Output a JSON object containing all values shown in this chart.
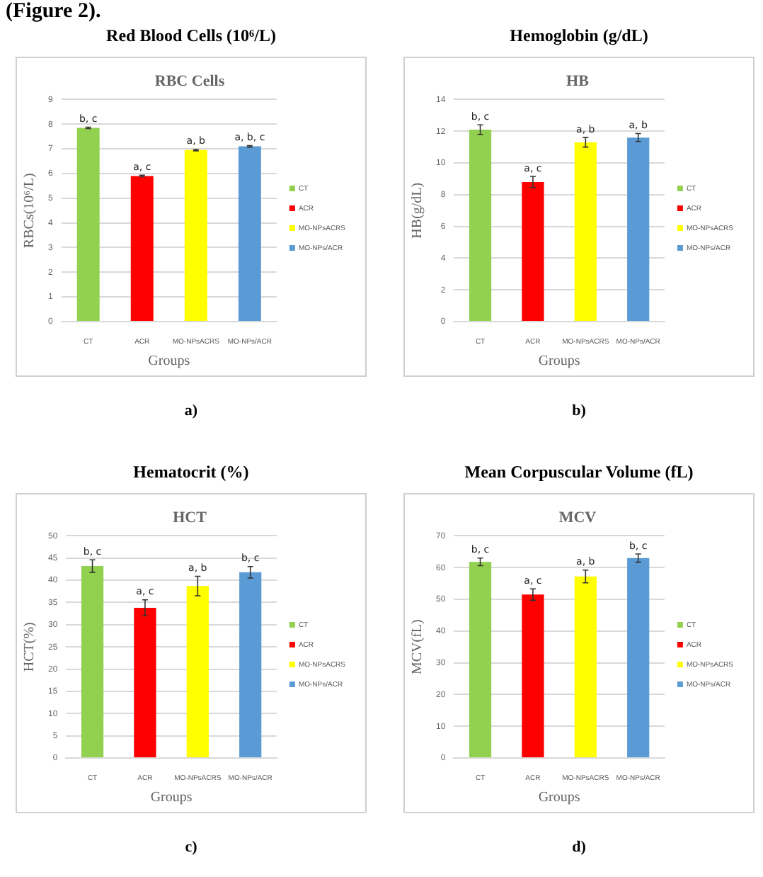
{
  "chart_data": [
    {
      "type": "bar",
      "title": "Red Blood Cells (10⁶/L)",
      "subtitle": "RBC Cells",
      "xlabel": "Groups",
      "ylabel": "RBCs(10⁶/L)",
      "annotations": [
        "(Figure 2).",
        "a)"
      ],
      "categories": [
        "CT",
        "ACR",
        "MO-NPsACRS",
        "MO-NPs/ACR"
      ],
      "series": [
        {
          "name": "CT",
          "color": "#92d050",
          "values": [
            7.85,
            null,
            null,
            null
          ],
          "errors": [
            0.03,
            null,
            null,
            null
          ],
          "value_labels": [
            "b, c",
            null,
            null,
            null
          ]
        },
        {
          "name": "ACR",
          "color": "#ff0000",
          "values": [
            null,
            5.9,
            null,
            null
          ],
          "errors": [
            null,
            0.03,
            null,
            null
          ],
          "value_labels": [
            null,
            "a, c",
            null,
            null
          ]
        },
        {
          "name": "MO-NPsACRS",
          "color": "#ffff00",
          "values": [
            null,
            null,
            6.95,
            null
          ],
          "errors": [
            null,
            null,
            0.03,
            null
          ],
          "value_labels": [
            null,
            null,
            "a, b",
            null
          ]
        },
        {
          "name": "MO-NPs/ACR",
          "color": "#5b9bd5",
          "values": [
            null,
            null,
            null,
            7.1
          ],
          "errors": [
            null,
            null,
            null,
            0.03
          ],
          "value_labels": [
            null,
            null,
            null,
            "a, b, c"
          ]
        }
      ],
      "ylim": [
        0,
        9
      ],
      "yticks": [
        0,
        1,
        2,
        3,
        4,
        5,
        6,
        7,
        8,
        9
      ],
      "grid": "y",
      "legend": "right"
    },
    {
      "type": "bar",
      "title": "Hemoglobin (g/dL)",
      "subtitle": "HB",
      "xlabel": "Groups",
      "ylabel": "HB(g/dL)",
      "annotations": [
        "b)"
      ],
      "categories": [
        "CT",
        "ACR",
        "MO-NPsACRS",
        "MO-NPs/ACR"
      ],
      "series": [
        {
          "name": "CT",
          "color": "#92d050",
          "values": [
            12.1,
            null,
            null,
            null
          ],
          "errors": [
            0.3,
            null,
            null,
            null
          ],
          "value_labels": [
            "b, c",
            null,
            null,
            null
          ]
        },
        {
          "name": "ACR",
          "color": "#ff0000",
          "values": [
            null,
            8.8,
            null,
            null
          ],
          "errors": [
            null,
            0.35,
            null,
            null
          ],
          "value_labels": [
            null,
            "a, c",
            null,
            null
          ]
        },
        {
          "name": "MO-NPsACRS",
          "color": "#ffff00",
          "values": [
            null,
            null,
            11.3,
            null
          ],
          "errors": [
            null,
            null,
            0.3,
            null
          ],
          "value_labels": [
            null,
            null,
            "a, b",
            null
          ]
        },
        {
          "name": "MO-NPs/ACR",
          "color": "#5b9bd5",
          "values": [
            null,
            null,
            null,
            11.6
          ],
          "errors": [
            null,
            null,
            null,
            0.25
          ],
          "value_labels": [
            null,
            null,
            null,
            "a, b"
          ]
        }
      ],
      "ylim": [
        0,
        14
      ],
      "yticks": [
        0,
        2,
        4,
        6,
        8,
        10,
        12,
        14
      ],
      "grid": "y",
      "legend": "right"
    },
    {
      "type": "bar",
      "title": "Hematocrit (%)",
      "subtitle": "HCT",
      "xlabel": "Groups",
      "ylabel": "HCT(%)",
      "annotations": [
        "c)"
      ],
      "categories": [
        "CT",
        "ACR",
        "MO-NPsACRS",
        "MO-NPs/ACR"
      ],
      "series": [
        {
          "name": "CT",
          "color": "#92d050",
          "values": [
            43.2,
            null,
            null,
            null
          ],
          "errors": [
            1.4,
            null,
            null,
            null
          ],
          "value_labels": [
            "b, c",
            null,
            null,
            null
          ]
        },
        {
          "name": "ACR",
          "color": "#ff0000",
          "values": [
            null,
            33.8,
            null,
            null
          ],
          "errors": [
            null,
            1.8,
            null,
            null
          ],
          "value_labels": [
            null,
            "a, c",
            null,
            null
          ]
        },
        {
          "name": "MO-NPsACRS",
          "color": "#ffff00",
          "values": [
            null,
            null,
            38.7,
            null
          ],
          "errors": [
            null,
            null,
            2.2,
            null
          ],
          "value_labels": [
            null,
            null,
            "a, b",
            null
          ]
        },
        {
          "name": "MO-NPs/ACR",
          "color": "#5b9bd5",
          "values": [
            null,
            null,
            null,
            41.8
          ],
          "errors": [
            null,
            null,
            null,
            1.3
          ],
          "value_labels": [
            null,
            null,
            null,
            "b, c"
          ]
        }
      ],
      "ylim": [
        0,
        50
      ],
      "yticks": [
        0,
        5,
        10,
        15,
        20,
        25,
        30,
        35,
        40,
        45,
        50
      ],
      "grid": "y",
      "legend": "right"
    },
    {
      "type": "bar",
      "title": "Mean Corpuscular Volume (fL)",
      "subtitle": "MCV",
      "xlabel": "Groups",
      "ylabel": "MCV(fL)",
      "annotations": [
        "d)"
      ],
      "categories": [
        "CT",
        "ACR",
        "MO-NPsACRS",
        "MO-NPs/ACR"
      ],
      "series": [
        {
          "name": "CT",
          "color": "#92d050",
          "values": [
            61.8,
            null,
            null,
            null
          ],
          "errors": [
            1.2,
            null,
            null,
            null
          ],
          "value_labels": [
            "b, c",
            null,
            null,
            null
          ]
        },
        {
          "name": "ACR",
          "color": "#ff0000",
          "values": [
            null,
            51.5,
            null,
            null
          ],
          "errors": [
            null,
            1.8,
            null,
            null
          ],
          "value_labels": [
            null,
            "a, c",
            null,
            null
          ]
        },
        {
          "name": "MO-NPsACRS",
          "color": "#ffff00",
          "values": [
            null,
            null,
            57.2,
            null
          ],
          "errors": [
            null,
            null,
            2,
            null
          ],
          "value_labels": [
            null,
            null,
            "a, b",
            null
          ]
        },
        {
          "name": "MO-NPs/ACR",
          "color": "#5b9bd5",
          "values": [
            null,
            null,
            null,
            63
          ],
          "errors": [
            null,
            null,
            null,
            1.3
          ],
          "value_labels": [
            null,
            null,
            null,
            "b, c"
          ]
        }
      ],
      "ylim": [
        0,
        70
      ],
      "yticks": [
        0,
        10,
        20,
        30,
        40,
        50,
        60,
        70
      ],
      "grid": "y",
      "legend": "right"
    }
  ]
}
